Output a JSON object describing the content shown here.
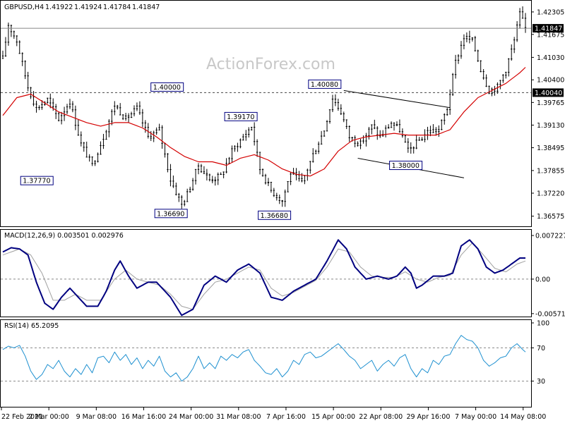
{
  "symbol_header": {
    "symbol": "GBPUSD,H4",
    "open": "1.41922",
    "high": "1.41924",
    "low": "1.41784",
    "close": "1.41847"
  },
  "watermark": "ActionForex.com",
  "colors": {
    "candles": "#000000",
    "ma": "#d40000",
    "macd": "#000080",
    "signal": "#a0a0a0",
    "rsi": "#1e90d0",
    "channel": "#000000"
  },
  "chart_data": [
    {
      "type": "candlestick",
      "title": "GBPUSD,H4",
      "ylim": [
        1.3629,
        1.4262
      ],
      "y_ticks": [
        "1.42305",
        "1.41675",
        "1.41030",
        "1.40400",
        "1.39765",
        "1.39130",
        "1.38495",
        "1.37855",
        "1.37220",
        "1.36575"
      ],
      "price_tags": {
        "last": "1.41847",
        "level": "1.40040"
      },
      "x_labels": [
        "22 Feb 2021",
        "2 Mar 00:00",
        "9 Mar 08:00",
        "16 Mar 16:00",
        "24 Mar 00:00",
        "31 Mar 08:00",
        "7 Apr 16:00",
        "15 Apr 00:00",
        "22 Apr 08:00",
        "29 Apr 16:00",
        "7 May 00:00",
        "14 May 08:00"
      ],
      "annotations": [
        {
          "text": "1.37770",
          "price": 1.3777
        },
        {
          "text": "1.40000",
          "price": 1.4
        },
        {
          "text": "1.36690",
          "price": 1.3669
        },
        {
          "text": "1.39170",
          "price": 1.3917
        },
        {
          "text": "1.36680",
          "price": 1.3668
        },
        {
          "text": "1.40080",
          "price": 1.4008
        },
        {
          "text": "1.38000",
          "price": 1.38
        }
      ],
      "close_path": [
        [
          0,
          1.41
        ],
        [
          2,
          1.4195
        ],
        [
          5,
          1.415
        ],
        [
          9,
          1.402
        ],
        [
          12,
          1.396
        ],
        [
          16,
          1.3985
        ],
        [
          20,
          1.393
        ],
        [
          24,
          1.398
        ],
        [
          28,
          1.386
        ],
        [
          32,
          1.38
        ],
        [
          36,
          1.388
        ],
        [
          40,
          1.397
        ],
        [
          44,
          1.393
        ],
        [
          48,
          1.396
        ],
        [
          52,
          1.388
        ],
        [
          56,
          1.39
        ],
        [
          60,
          1.376
        ],
        [
          64,
          1.369
        ],
        [
          66,
          1.372
        ],
        [
          70,
          1.38
        ],
        [
          74,
          1.376
        ],
        [
          78,
          1.377
        ],
        [
          82,
          1.384
        ],
        [
          86,
          1.388
        ],
        [
          89,
          1.391
        ],
        [
          92,
          1.379
        ],
        [
          96,
          1.373
        ],
        [
          100,
          1.37
        ],
        [
          103,
          1.378
        ],
        [
          107,
          1.375
        ],
        [
          111,
          1.383
        ],
        [
          115,
          1.39
        ],
        [
          118,
          1.399
        ],
        [
          121,
          1.395
        ],
        [
          124,
          1.388
        ],
        [
          128,
          1.386
        ],
        [
          132,
          1.391
        ],
        [
          135,
          1.388
        ],
        [
          139,
          1.392
        ],
        [
          142,
          1.39
        ],
        [
          145,
          1.384
        ],
        [
          149,
          1.387
        ],
        [
          152,
          1.3895
        ],
        [
          156,
          1.39
        ],
        [
          159,
          1.396
        ],
        [
          162,
          1.409
        ],
        [
          165,
          1.416
        ],
        [
          168,
          1.415
        ],
        [
          171,
          1.407
        ],
        [
          174,
          1.401
        ],
        [
          177,
          1.402
        ],
        [
          180,
          1.407
        ],
        [
          183,
          1.415
        ],
        [
          185,
          1.4225
        ],
        [
          187,
          1.4185
        ]
      ],
      "ma_path": [
        [
          0,
          1.394
        ],
        [
          5,
          1.399
        ],
        [
          10,
          1.4
        ],
        [
          15,
          1.3975
        ],
        [
          20,
          1.395
        ],
        [
          25,
          1.3935
        ],
        [
          30,
          1.392
        ],
        [
          35,
          1.391
        ],
        [
          40,
          1.392
        ],
        [
          45,
          1.392
        ],
        [
          50,
          1.3905
        ],
        [
          55,
          1.388
        ],
        [
          60,
          1.385
        ],
        [
          65,
          1.3825
        ],
        [
          70,
          1.381
        ],
        [
          75,
          1.381
        ],
        [
          80,
          1.38
        ],
        [
          85,
          1.382
        ],
        [
          90,
          1.383
        ],
        [
          95,
          1.3815
        ],
        [
          100,
          1.379
        ],
        [
          105,
          1.3775
        ],
        [
          110,
          1.377
        ],
        [
          115,
          1.379
        ],
        [
          120,
          1.384
        ],
        [
          125,
          1.387
        ],
        [
          130,
          1.388
        ],
        [
          135,
          1.3885
        ],
        [
          140,
          1.389
        ],
        [
          145,
          1.3885
        ],
        [
          150,
          1.3885
        ],
        [
          155,
          1.3885
        ],
        [
          160,
          1.39
        ],
        [
          165,
          1.395
        ],
        [
          170,
          1.399
        ],
        [
          175,
          1.401
        ],
        [
          180,
          1.403
        ],
        [
          185,
          1.406
        ],
        [
          187,
          1.4075
        ]
      ],
      "channel": [
        {
          "from": [
            122,
            1.401
          ],
          "to": [
            160,
            1.3962
          ]
        },
        {
          "from": [
            127,
            1.382
          ],
          "to": [
            165,
            1.3765
          ]
        }
      ],
      "bars": 188
    },
    {
      "type": "line",
      "title": "MACD(12,26,9) 0.003501 0.002976",
      "ylim": [
        -0.0062,
        0.0077
      ],
      "y_ticks": [
        "0.007227",
        "0.00",
        "-0.005714"
      ],
      "macd_path": [
        [
          0,
          0.0045
        ],
        [
          3,
          0.0052
        ],
        [
          6,
          0.005
        ],
        [
          9,
          0.004
        ],
        [
          12,
          -0.0005
        ],
        [
          15,
          -0.004
        ],
        [
          18,
          -0.005
        ],
        [
          21,
          -0.003
        ],
        [
          24,
          -0.0015
        ],
        [
          27,
          -0.003
        ],
        [
          30,
          -0.0045
        ],
        [
          34,
          -0.0045
        ],
        [
          37,
          -0.002
        ],
        [
          40,
          0.0015
        ],
        [
          42,
          0.003
        ],
        [
          45,
          0.0005
        ],
        [
          48,
          -0.0015
        ],
        [
          52,
          -0.0005
        ],
        [
          55,
          -0.0005
        ],
        [
          60,
          -0.003
        ],
        [
          64,
          -0.006
        ],
        [
          68,
          -0.005
        ],
        [
          72,
          -0.001
        ],
        [
          76,
          0.0005
        ],
        [
          80,
          -0.0005
        ],
        [
          84,
          0.0015
        ],
        [
          88,
          0.0025
        ],
        [
          92,
          0.001
        ],
        [
          96,
          -0.003
        ],
        [
          100,
          -0.0035
        ],
        [
          104,
          -0.002
        ],
        [
          108,
          -0.001
        ],
        [
          112,
          0.0
        ],
        [
          116,
          0.003
        ],
        [
          120,
          0.0065
        ],
        [
          123,
          0.005
        ],
        [
          126,
          0.002
        ],
        [
          130,
          0.0
        ],
        [
          134,
          0.0005
        ],
        [
          138,
          0.0
        ],
        [
          141,
          0.0005
        ],
        [
          144,
          0.002
        ],
        [
          146,
          0.001
        ],
        [
          148,
          -0.0015
        ],
        [
          150,
          -0.001
        ],
        [
          154,
          0.0005
        ],
        [
          158,
          0.0005
        ],
        [
          161,
          0.001
        ],
        [
          164,
          0.0055
        ],
        [
          167,
          0.0065
        ],
        [
          170,
          0.005
        ],
        [
          173,
          0.002
        ],
        [
          176,
          0.001
        ],
        [
          179,
          0.0015
        ],
        [
          182,
          0.0025
        ],
        [
          185,
          0.0035
        ],
        [
          187,
          0.0035
        ]
      ],
      "signal_path": [
        [
          0,
          0.004
        ],
        [
          6,
          0.005
        ],
        [
          10,
          0.004
        ],
        [
          14,
          0.001
        ],
        [
          18,
          -0.0035
        ],
        [
          22,
          -0.0035
        ],
        [
          26,
          -0.0025
        ],
        [
          30,
          -0.0035
        ],
        [
          35,
          -0.0035
        ],
        [
          40,
          0.0
        ],
        [
          44,
          0.0015
        ],
        [
          48,
          0.0
        ],
        [
          52,
          -0.0005
        ],
        [
          56,
          -0.001
        ],
        [
          60,
          -0.0025
        ],
        [
          64,
          -0.0045
        ],
        [
          68,
          -0.005
        ],
        [
          72,
          -0.0025
        ],
        [
          76,
          -0.0005
        ],
        [
          80,
          0.0
        ],
        [
          84,
          0.001
        ],
        [
          88,
          0.002
        ],
        [
          92,
          0.0015
        ],
        [
          96,
          -0.0015
        ],
        [
          100,
          -0.0028
        ],
        [
          104,
          -0.0022
        ],
        [
          108,
          -0.0012
        ],
        [
          112,
          -0.0002
        ],
        [
          116,
          0.002
        ],
        [
          120,
          0.005
        ],
        [
          124,
          0.0045
        ],
        [
          128,
          0.002
        ],
        [
          132,
          0.0005
        ],
        [
          136,
          0.0003
        ],
        [
          140,
          0.0003
        ],
        [
          144,
          0.0012
        ],
        [
          148,
          0.0
        ],
        [
          152,
          -0.0005
        ],
        [
          156,
          0.0003
        ],
        [
          160,
          0.0006
        ],
        [
          164,
          0.004
        ],
        [
          168,
          0.006
        ],
        [
          172,
          0.004
        ],
        [
          176,
          0.0018
        ],
        [
          180,
          0.0012
        ],
        [
          184,
          0.0025
        ],
        [
          187,
          0.003
        ]
      ]
    },
    {
      "type": "line",
      "title": "RSI(14) 65.2095",
      "ylim": [
        0,
        100
      ],
      "y_ticks": [
        "100",
        "70",
        "30"
      ],
      "levels": [
        70,
        30
      ],
      "rsi_path": [
        [
          0,
          68
        ],
        [
          2,
          72
        ],
        [
          4,
          70
        ],
        [
          6,
          73
        ],
        [
          8,
          60
        ],
        [
          10,
          42
        ],
        [
          12,
          32
        ],
        [
          14,
          38
        ],
        [
          16,
          50
        ],
        [
          18,
          45
        ],
        [
          20,
          55
        ],
        [
          22,
          42
        ],
        [
          24,
          35
        ],
        [
          26,
          45
        ],
        [
          28,
          38
        ],
        [
          30,
          50
        ],
        [
          32,
          40
        ],
        [
          34,
          58
        ],
        [
          36,
          60
        ],
        [
          38,
          52
        ],
        [
          40,
          65
        ],
        [
          42,
          55
        ],
        [
          44,
          62
        ],
        [
          46,
          50
        ],
        [
          48,
          58
        ],
        [
          50,
          45
        ],
        [
          52,
          55
        ],
        [
          54,
          48
        ],
        [
          56,
          60
        ],
        [
          58,
          42
        ],
        [
          60,
          35
        ],
        [
          62,
          40
        ],
        [
          64,
          30
        ],
        [
          66,
          35
        ],
        [
          68,
          45
        ],
        [
          70,
          60
        ],
        [
          72,
          45
        ],
        [
          74,
          52
        ],
        [
          76,
          45
        ],
        [
          78,
          60
        ],
        [
          80,
          55
        ],
        [
          82,
          62
        ],
        [
          84,
          58
        ],
        [
          86,
          65
        ],
        [
          88,
          68
        ],
        [
          90,
          55
        ],
        [
          92,
          48
        ],
        [
          94,
          40
        ],
        [
          96,
          38
        ],
        [
          98,
          45
        ],
        [
          100,
          35
        ],
        [
          102,
          42
        ],
        [
          104,
          55
        ],
        [
          106,
          50
        ],
        [
          108,
          62
        ],
        [
          110,
          65
        ],
        [
          112,
          58
        ],
        [
          114,
          60
        ],
        [
          116,
          65
        ],
        [
          118,
          70
        ],
        [
          120,
          75
        ],
        [
          122,
          68
        ],
        [
          124,
          60
        ],
        [
          126,
          55
        ],
        [
          128,
          45
        ],
        [
          130,
          50
        ],
        [
          132,
          55
        ],
        [
          134,
          42
        ],
        [
          136,
          50
        ],
        [
          138,
          55
        ],
        [
          140,
          48
        ],
        [
          142,
          58
        ],
        [
          144,
          62
        ],
        [
          146,
          45
        ],
        [
          148,
          35
        ],
        [
          150,
          45
        ],
        [
          152,
          40
        ],
        [
          154,
          55
        ],
        [
          156,
          50
        ],
        [
          158,
          60
        ],
        [
          160,
          62
        ],
        [
          162,
          75
        ],
        [
          164,
          85
        ],
        [
          166,
          80
        ],
        [
          168,
          78
        ],
        [
          170,
          70
        ],
        [
          172,
          55
        ],
        [
          174,
          48
        ],
        [
          176,
          52
        ],
        [
          178,
          58
        ],
        [
          180,
          60
        ],
        [
          182,
          70
        ],
        [
          184,
          75
        ],
        [
          186,
          68
        ],
        [
          187,
          65
        ]
      ]
    }
  ]
}
